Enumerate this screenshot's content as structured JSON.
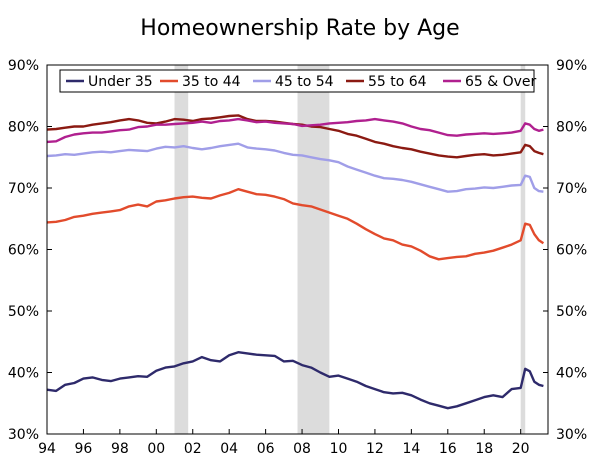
{
  "chart_data": {
    "type": "line",
    "title": "Homeownership Rate by Age",
    "xlabel": "",
    "ylabel": "",
    "xlim": [
      1994,
      2021.5
    ],
    "ylim": [
      30,
      90
    ],
    "x_ticks": [
      1994,
      1996,
      1998,
      2000,
      2002,
      2004,
      2006,
      2008,
      2010,
      2012,
      2014,
      2016,
      2018,
      2020
    ],
    "x_tick_labels": [
      "94",
      "96",
      "98",
      "00",
      "02",
      "04",
      "06",
      "08",
      "10",
      "12",
      "14",
      "16",
      "18",
      "20"
    ],
    "y_ticks": [
      30,
      40,
      50,
      60,
      70,
      80,
      90
    ],
    "y_tick_labels": [
      "30%",
      "40%",
      "50%",
      "60%",
      "70%",
      "80%",
      "90%"
    ],
    "y_tick_labels_right": [
      "30%",
      "40%",
      "50%",
      "60%",
      "70%",
      "80%",
      "90%"
    ],
    "grid": false,
    "legend_position": "top",
    "recession_shading": [
      [
        2001.0,
        2001.75
      ],
      [
        2007.75,
        2009.5
      ],
      [
        2020.0,
        2020.25
      ]
    ],
    "series": [
      {
        "name": "Under 35",
        "color": "#2e2a6b",
        "points": [
          [
            1994,
            37.2
          ],
          [
            1994.5,
            37.0
          ],
          [
            1995,
            38.0
          ],
          [
            1995.5,
            38.3
          ],
          [
            1996,
            39.0
          ],
          [
            1996.5,
            39.2
          ],
          [
            1997,
            38.8
          ],
          [
            1997.5,
            38.6
          ],
          [
            1998,
            39.0
          ],
          [
            1998.5,
            39.2
          ],
          [
            1999,
            39.4
          ],
          [
            1999.5,
            39.3
          ],
          [
            2000,
            40.3
          ],
          [
            2000.5,
            40.8
          ],
          [
            2001,
            41.0
          ],
          [
            2001.5,
            41.5
          ],
          [
            2002,
            41.8
          ],
          [
            2002.5,
            42.5
          ],
          [
            2003,
            42.0
          ],
          [
            2003.5,
            41.8
          ],
          [
            2004,
            42.8
          ],
          [
            2004.5,
            43.3
          ],
          [
            2005,
            43.1
          ],
          [
            2005.5,
            42.9
          ],
          [
            2006,
            42.8
          ],
          [
            2006.5,
            42.7
          ],
          [
            2007,
            41.8
          ],
          [
            2007.5,
            41.9
          ],
          [
            2008,
            41.2
          ],
          [
            2008.5,
            40.8
          ],
          [
            2009,
            40.0
          ],
          [
            2009.5,
            39.3
          ],
          [
            2010,
            39.5
          ],
          [
            2010.5,
            39.0
          ],
          [
            2011,
            38.5
          ],
          [
            2011.5,
            37.8
          ],
          [
            2012,
            37.3
          ],
          [
            2012.5,
            36.8
          ],
          [
            2013,
            36.6
          ],
          [
            2013.5,
            36.7
          ],
          [
            2014,
            36.3
          ],
          [
            2014.5,
            35.6
          ],
          [
            2015,
            35.0
          ],
          [
            2015.5,
            34.6
          ],
          [
            2016,
            34.2
          ],
          [
            2016.5,
            34.5
          ],
          [
            2017,
            35.0
          ],
          [
            2017.5,
            35.5
          ],
          [
            2018,
            36.0
          ],
          [
            2018.5,
            36.3
          ],
          [
            2019,
            36.0
          ],
          [
            2019.5,
            37.3
          ],
          [
            2020,
            37.5
          ],
          [
            2020.25,
            40.6
          ],
          [
            2020.5,
            40.2
          ],
          [
            2020.75,
            38.5
          ],
          [
            2021,
            38.0
          ],
          [
            2021.25,
            37.8
          ]
        ]
      },
      {
        "name": "35 to 44",
        "color": "#e24b2c",
        "points": [
          [
            1994,
            64.4
          ],
          [
            1994.5,
            64.5
          ],
          [
            1995,
            64.8
          ],
          [
            1995.5,
            65.3
          ],
          [
            1996,
            65.5
          ],
          [
            1996.5,
            65.8
          ],
          [
            1997,
            66.0
          ],
          [
            1997.5,
            66.2
          ],
          [
            1998,
            66.4
          ],
          [
            1998.5,
            67.0
          ],
          [
            1999,
            67.3
          ],
          [
            1999.5,
            67.0
          ],
          [
            2000,
            67.8
          ],
          [
            2000.5,
            68.0
          ],
          [
            2001,
            68.3
          ],
          [
            2001.5,
            68.5
          ],
          [
            2002,
            68.6
          ],
          [
            2002.5,
            68.4
          ],
          [
            2003,
            68.3
          ],
          [
            2003.5,
            68.8
          ],
          [
            2004,
            69.2
          ],
          [
            2004.5,
            69.8
          ],
          [
            2005,
            69.4
          ],
          [
            2005.5,
            69.0
          ],
          [
            2006,
            68.9
          ],
          [
            2006.5,
            68.6
          ],
          [
            2007,
            68.2
          ],
          [
            2007.5,
            67.5
          ],
          [
            2008,
            67.2
          ],
          [
            2008.5,
            67.0
          ],
          [
            2009,
            66.5
          ],
          [
            2009.5,
            66.0
          ],
          [
            2010,
            65.5
          ],
          [
            2010.5,
            65.0
          ],
          [
            2011,
            64.2
          ],
          [
            2011.5,
            63.3
          ],
          [
            2012,
            62.5
          ],
          [
            2012.5,
            61.8
          ],
          [
            2013,
            61.5
          ],
          [
            2013.5,
            60.8
          ],
          [
            2014,
            60.5
          ],
          [
            2014.5,
            59.8
          ],
          [
            2015,
            58.9
          ],
          [
            2015.5,
            58.4
          ],
          [
            2016,
            58.6
          ],
          [
            2016.5,
            58.8
          ],
          [
            2017,
            58.9
          ],
          [
            2017.5,
            59.3
          ],
          [
            2018,
            59.5
          ],
          [
            2018.5,
            59.8
          ],
          [
            2019,
            60.3
          ],
          [
            2019.5,
            60.8
          ],
          [
            2020,
            61.5
          ],
          [
            2020.25,
            64.2
          ],
          [
            2020.5,
            64.0
          ],
          [
            2020.75,
            62.5
          ],
          [
            2021,
            61.5
          ],
          [
            2021.25,
            61.0
          ]
        ]
      },
      {
        "name": "45 to 54",
        "color": "#a09ee8",
        "points": [
          [
            1994,
            75.2
          ],
          [
            1994.5,
            75.3
          ],
          [
            1995,
            75.5
          ],
          [
            1995.5,
            75.4
          ],
          [
            1996,
            75.6
          ],
          [
            1996.5,
            75.8
          ],
          [
            1997,
            75.9
          ],
          [
            1997.5,
            75.8
          ],
          [
            1998,
            76.0
          ],
          [
            1998.5,
            76.2
          ],
          [
            1999,
            76.1
          ],
          [
            1999.5,
            76.0
          ],
          [
            2000,
            76.4
          ],
          [
            2000.5,
            76.7
          ],
          [
            2001,
            76.6
          ],
          [
            2001.5,
            76.8
          ],
          [
            2002,
            76.5
          ],
          [
            2002.5,
            76.3
          ],
          [
            2003,
            76.5
          ],
          [
            2003.5,
            76.8
          ],
          [
            2004,
            77.0
          ],
          [
            2004.5,
            77.2
          ],
          [
            2005,
            76.6
          ],
          [
            2005.5,
            76.4
          ],
          [
            2006,
            76.3
          ],
          [
            2006.5,
            76.1
          ],
          [
            2007,
            75.7
          ],
          [
            2007.5,
            75.4
          ],
          [
            2008,
            75.3
          ],
          [
            2008.5,
            75.0
          ],
          [
            2009,
            74.7
          ],
          [
            2009.5,
            74.5
          ],
          [
            2010,
            74.2
          ],
          [
            2010.5,
            73.5
          ],
          [
            2011,
            73.0
          ],
          [
            2011.5,
            72.5
          ],
          [
            2012,
            72.0
          ],
          [
            2012.5,
            71.6
          ],
          [
            2013,
            71.5
          ],
          [
            2013.5,
            71.3
          ],
          [
            2014,
            71.0
          ],
          [
            2014.5,
            70.6
          ],
          [
            2015,
            70.2
          ],
          [
            2015.5,
            69.8
          ],
          [
            2016,
            69.4
          ],
          [
            2016.5,
            69.5
          ],
          [
            2017,
            69.8
          ],
          [
            2017.5,
            69.9
          ],
          [
            2018,
            70.1
          ],
          [
            2018.5,
            70.0
          ],
          [
            2019,
            70.2
          ],
          [
            2019.5,
            70.4
          ],
          [
            2020,
            70.5
          ],
          [
            2020.25,
            72.0
          ],
          [
            2020.5,
            71.8
          ],
          [
            2020.75,
            70.0
          ],
          [
            2021,
            69.5
          ],
          [
            2021.25,
            69.4
          ]
        ]
      },
      {
        "name": "55 to 64",
        "color": "#8b1a12",
        "points": [
          [
            1994,
            79.5
          ],
          [
            1994.5,
            79.6
          ],
          [
            1995,
            79.8
          ],
          [
            1995.5,
            80.0
          ],
          [
            1996,
            80.0
          ],
          [
            1996.5,
            80.3
          ],
          [
            1997,
            80.5
          ],
          [
            1997.5,
            80.7
          ],
          [
            1998,
            81.0
          ],
          [
            1998.5,
            81.2
          ],
          [
            1999,
            81.0
          ],
          [
            1999.5,
            80.6
          ],
          [
            2000,
            80.5
          ],
          [
            2000.5,
            80.8
          ],
          [
            2001,
            81.2
          ],
          [
            2001.5,
            81.1
          ],
          [
            2002,
            80.9
          ],
          [
            2002.5,
            81.2
          ],
          [
            2003,
            81.3
          ],
          [
            2003.5,
            81.5
          ],
          [
            2004,
            81.7
          ],
          [
            2004.5,
            81.8
          ],
          [
            2005,
            81.2
          ],
          [
            2005.5,
            80.9
          ],
          [
            2006,
            80.9
          ],
          [
            2006.5,
            80.8
          ],
          [
            2007,
            80.6
          ],
          [
            2007.5,
            80.4
          ],
          [
            2008,
            80.3
          ],
          [
            2008.5,
            80.0
          ],
          [
            2009,
            79.9
          ],
          [
            2009.5,
            79.6
          ],
          [
            2010,
            79.3
          ],
          [
            2010.5,
            78.8
          ],
          [
            2011,
            78.5
          ],
          [
            2011.5,
            78.0
          ],
          [
            2012,
            77.5
          ],
          [
            2012.5,
            77.2
          ],
          [
            2013,
            76.8
          ],
          [
            2013.5,
            76.5
          ],
          [
            2014,
            76.3
          ],
          [
            2014.5,
            75.9
          ],
          [
            2015,
            75.6
          ],
          [
            2015.5,
            75.3
          ],
          [
            2016,
            75.1
          ],
          [
            2016.5,
            75.0
          ],
          [
            2017,
            75.2
          ],
          [
            2017.5,
            75.4
          ],
          [
            2018,
            75.5
          ],
          [
            2018.5,
            75.3
          ],
          [
            2019,
            75.4
          ],
          [
            2019.5,
            75.6
          ],
          [
            2020,
            75.8
          ],
          [
            2020.25,
            77.0
          ],
          [
            2020.5,
            76.8
          ],
          [
            2020.75,
            76.0
          ],
          [
            2021,
            75.7
          ],
          [
            2021.25,
            75.5
          ]
        ]
      },
      {
        "name": "65 & Over",
        "color": "#b0208f",
        "points": [
          [
            1994,
            77.5
          ],
          [
            1994.5,
            77.6
          ],
          [
            1995,
            78.3
          ],
          [
            1995.5,
            78.7
          ],
          [
            1996,
            78.9
          ],
          [
            1996.5,
            79.0
          ],
          [
            1997,
            79.0
          ],
          [
            1997.5,
            79.2
          ],
          [
            1998,
            79.4
          ],
          [
            1998.5,
            79.5
          ],
          [
            1999,
            79.9
          ],
          [
            1999.5,
            80.0
          ],
          [
            2000,
            80.3
          ],
          [
            2000.5,
            80.3
          ],
          [
            2001,
            80.4
          ],
          [
            2001.5,
            80.5
          ],
          [
            2002,
            80.6
          ],
          [
            2002.5,
            80.8
          ],
          [
            2003,
            80.6
          ],
          [
            2003.5,
            80.9
          ],
          [
            2004,
            81.0
          ],
          [
            2004.5,
            81.2
          ],
          [
            2005,
            81.0
          ],
          [
            2005.5,
            80.7
          ],
          [
            2006,
            80.8
          ],
          [
            2006.5,
            80.6
          ],
          [
            2007,
            80.5
          ],
          [
            2007.5,
            80.4
          ],
          [
            2008,
            80.1
          ],
          [
            2008.5,
            80.2
          ],
          [
            2009,
            80.3
          ],
          [
            2009.5,
            80.5
          ],
          [
            2010,
            80.6
          ],
          [
            2010.5,
            80.7
          ],
          [
            2011,
            80.9
          ],
          [
            2011.5,
            81.0
          ],
          [
            2012,
            81.2
          ],
          [
            2012.5,
            81.0
          ],
          [
            2013,
            80.8
          ],
          [
            2013.5,
            80.5
          ],
          [
            2014,
            80.0
          ],
          [
            2014.5,
            79.6
          ],
          [
            2015,
            79.4
          ],
          [
            2015.5,
            79.0
          ],
          [
            2016,
            78.6
          ],
          [
            2016.5,
            78.5
          ],
          [
            2017,
            78.7
          ],
          [
            2017.5,
            78.8
          ],
          [
            2018,
            78.9
          ],
          [
            2018.5,
            78.8
          ],
          [
            2019,
            78.9
          ],
          [
            2019.5,
            79.0
          ],
          [
            2020,
            79.3
          ],
          [
            2020.25,
            80.5
          ],
          [
            2020.5,
            80.3
          ],
          [
            2020.75,
            79.6
          ],
          [
            2021,
            79.3
          ],
          [
            2021.25,
            79.5
          ]
        ]
      }
    ]
  }
}
